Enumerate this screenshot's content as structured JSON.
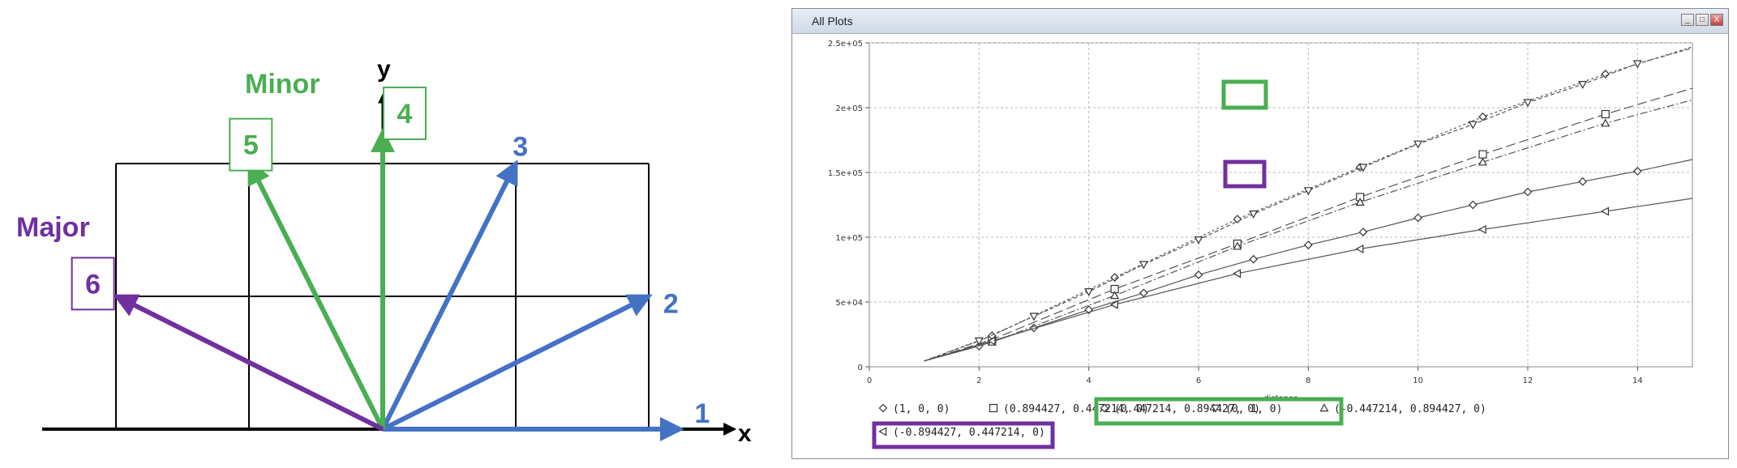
{
  "diagram": {
    "axis_x_label": "x",
    "axis_y_label": "y",
    "minor_label": "Minor",
    "major_label": "Major",
    "colors": {
      "blue": "#4472c4",
      "green": "#4aae52",
      "purple": "#7030a0"
    },
    "vectors": [
      {
        "num": "1",
        "dir": [
          1,
          0
        ],
        "group": "blue"
      },
      {
        "num": "2",
        "dir": [
          0.894427,
          0.447214
        ],
        "group": "blue"
      },
      {
        "num": "3",
        "dir": [
          0.447214,
          0.894427
        ],
        "group": "blue"
      },
      {
        "num": "4",
        "dir": [
          0,
          1
        ],
        "group": "green",
        "boxed": true
      },
      {
        "num": "5",
        "dir": [
          -0.447214,
          0.894427
        ],
        "group": "green",
        "boxed": true
      },
      {
        "num": "6",
        "dir": [
          -0.894427,
          0.447214
        ],
        "group": "purple",
        "boxed": true
      }
    ]
  },
  "window": {
    "title": "All Plots",
    "btn_min": "_",
    "btn_max": "□",
    "btn_close": "X"
  },
  "chart_data": {
    "type": "line",
    "title": "",
    "xlabel": "distance",
    "ylabel": "",
    "xlim": [
      0,
      15
    ],
    "ylim": [
      0,
      250000
    ],
    "xticks": [
      "0",
      "2",
      "4",
      "6",
      "8",
      "10",
      "12",
      "14"
    ],
    "yticks": [
      "0",
      "5e+04",
      "1e+05",
      "1.5e+05",
      "2e+05",
      "2.5e+05"
    ],
    "grid": true,
    "legend_position": "bottom",
    "series": [
      {
        "name": "(1, 0, 0)",
        "marker": "diamond",
        "dash": "",
        "x": [
          1,
          2,
          3,
          4,
          5,
          6,
          7,
          8,
          9,
          10,
          11,
          12,
          13,
          14,
          15
        ],
        "y": [
          4500,
          16000,
          30000,
          44000,
          57000,
          71000,
          83000,
          94000,
          104000,
          115000,
          125000,
          135000,
          143000,
          151000,
          160000
        ]
      },
      {
        "name": "(0.894427, 0.447214, 0)",
        "marker": "square",
        "dash": "12 5",
        "x": [
          1,
          2.236,
          4.472,
          6.708,
          8.944,
          11.18,
          13.416,
          15
        ],
        "y": [
          4500,
          21000,
          60000,
          95000,
          131000,
          164000,
          195000,
          215000
        ]
      },
      {
        "name": "(0.447214, 0.894427, 0)",
        "marker": "diamond",
        "dash": "3 3",
        "x": [
          1,
          2.236,
          4.472,
          6.708,
          8.944,
          11.18,
          13.416,
          15
        ],
        "y": [
          4500,
          24000,
          69000,
          114000,
          154000,
          193000,
          226000,
          247000
        ]
      },
      {
        "name": "(0, 1, 0)",
        "marker": "tri-down",
        "dash": "5 3",
        "x": [
          1,
          2,
          3,
          4,
          5,
          6,
          7,
          8,
          9,
          10,
          11,
          12,
          13,
          14,
          15
        ],
        "y": [
          4500,
          20000,
          39000,
          58000,
          79000,
          98000,
          118000,
          136000,
          154000,
          172000,
          187000,
          204000,
          218000,
          234000,
          246000
        ]
      },
      {
        "name": "(-0.447214, 0.894427, 0)",
        "marker": "tri-up",
        "dash": "9 3 2 3",
        "x": [
          1,
          2.236,
          4.472,
          6.708,
          8.944,
          11.18,
          13.416,
          15
        ],
        "y": [
          4500,
          19000,
          55000,
          93000,
          127000,
          158000,
          188000,
          206000
        ]
      },
      {
        "name": "(-0.894427, 0.447214, 0)",
        "marker": "tri-left",
        "dash": "",
        "x": [
          1,
          2.236,
          4.472,
          6.708,
          8.944,
          11.18,
          13.416,
          15
        ],
        "y": [
          4500,
          20000,
          48000,
          72000,
          91000,
          106000,
          120000,
          130000
        ]
      }
    ],
    "legend_rows": [
      [
        {
          "text": "(1, 0, 0)",
          "marker": "diamond",
          "col": 0
        },
        {
          "text": "(0.894427, 0.447214, 0)",
          "marker": "square",
          "col": 1
        },
        {
          "text": "(0.447214, 0.894427, 0)",
          "marker": "diamond",
          "col": 2
        },
        {
          "text": "(0, 1, 0)",
          "marker": "tri-down",
          "col": 3
        },
        {
          "text": "(-0.447214, 0.894427, 0)",
          "marker": "tri-up",
          "col": 4
        }
      ],
      [
        {
          "text": "(-0.894427, 0.447214, 0)",
          "marker": "tri-left",
          "col": 0
        }
      ]
    ]
  }
}
